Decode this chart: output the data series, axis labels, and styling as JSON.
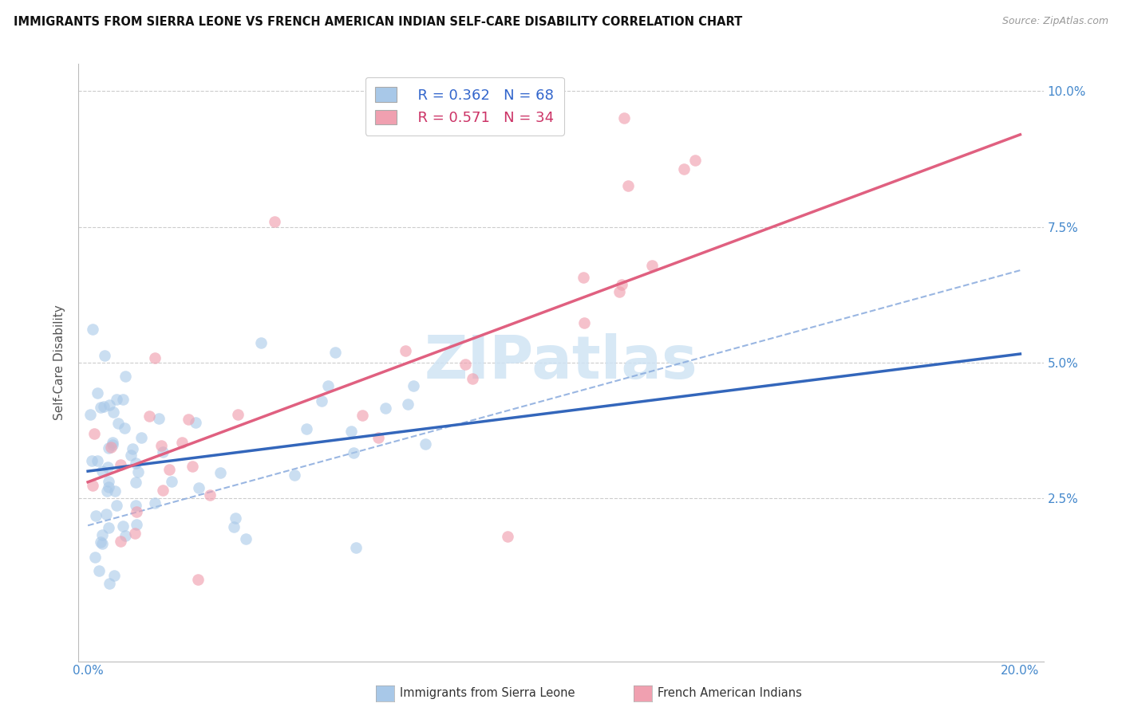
{
  "title": "IMMIGRANTS FROM SIERRA LEONE VS FRENCH AMERICAN INDIAN SELF-CARE DISABILITY CORRELATION CHART",
  "source": "Source: ZipAtlas.com",
  "label_blue": "Immigrants from Sierra Leone",
  "label_pink": "French American Indians",
  "ylabel": "Self-Care Disability",
  "legend_blue_r": "R = 0.362",
  "legend_blue_n": "N = 68",
  "legend_pink_r": "R = 0.571",
  "legend_pink_n": "N = 34",
  "xlim": [
    -0.002,
    0.205
  ],
  "ylim": [
    -0.005,
    0.105
  ],
  "ytick_positions": [
    0.025,
    0.05,
    0.075,
    0.1
  ],
  "ytick_labels": [
    "2.5%",
    "5.0%",
    "7.5%",
    "10.0%"
  ],
  "xtick_positions": [
    0.0,
    0.05,
    0.1,
    0.15,
    0.2
  ],
  "blue_scatter_color": "#a8c8e8",
  "blue_line_color": "#3366bb",
  "pink_scatter_color": "#f0a0b0",
  "pink_line_color": "#e06080",
  "dashed_color": "#88aadd",
  "grid_color": "#cccccc",
  "tick_color": "#4488cc",
  "title_color": "#111111",
  "source_color": "#999999",
  "ylabel_color": "#555555",
  "watermark_text": "ZIPatlas",
  "watermark_color": "#d0e4f4",
  "blue_slope": 0.108,
  "blue_intercept": 0.03,
  "pink_slope": 0.32,
  "pink_intercept": 0.028,
  "dash_slope": 0.235,
  "dash_intercept": 0.02,
  "figsize": [
    14.06,
    8.92
  ],
  "dpi": 100
}
